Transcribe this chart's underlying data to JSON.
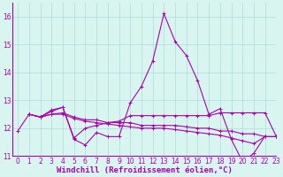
{
  "x": [
    0,
    1,
    2,
    3,
    4,
    5,
    6,
    7,
    8,
    9,
    10,
    11,
    12,
    13,
    14,
    15,
    16,
    17,
    18,
    19,
    20,
    21,
    22,
    23
  ],
  "line1": [
    11.9,
    12.5,
    12.4,
    12.65,
    12.75,
    11.6,
    11.4,
    11.85,
    11.7,
    11.7,
    12.9,
    13.5,
    14.4,
    16.1,
    15.1,
    14.6,
    13.7,
    12.5,
    12.7,
    11.6,
    10.8,
    11.1,
    11.72,
    null
  ],
  "line2": [
    null,
    12.5,
    12.4,
    12.6,
    12.75,
    11.65,
    12.0,
    12.1,
    12.2,
    12.25,
    12.45,
    12.45,
    12.45,
    12.45,
    12.45,
    12.45,
    12.45,
    12.45,
    12.55,
    12.55,
    12.55,
    12.55,
    12.55,
    11.7
  ],
  "line3": [
    null,
    12.5,
    12.4,
    12.5,
    12.55,
    12.4,
    12.3,
    12.3,
    12.2,
    12.2,
    12.2,
    12.1,
    12.1,
    12.1,
    12.1,
    12.05,
    12.0,
    12.0,
    11.9,
    11.9,
    11.8,
    11.8,
    11.7,
    11.7
  ],
  "line4": [
    null,
    12.5,
    12.4,
    12.5,
    12.5,
    12.35,
    12.25,
    12.2,
    12.15,
    12.1,
    12.05,
    12.0,
    12.0,
    12.0,
    11.95,
    11.9,
    11.85,
    11.8,
    11.75,
    11.65,
    11.55,
    11.45,
    11.7,
    11.7
  ],
  "line_color": "#aa00aa",
  "bg_color": "#d8f5f0",
  "grid_color": "#aadddd",
  "axis_color": "#aa00aa",
  "xlabel": "Windchill (Refroidissement éolien,°C)",
  "xlim": [
    -0.5,
    23
  ],
  "ylim": [
    11,
    16.5
  ],
  "yticks": [
    11,
    12,
    13,
    14,
    15,
    16
  ],
  "xticks": [
    0,
    1,
    2,
    3,
    4,
    5,
    6,
    7,
    8,
    9,
    10,
    11,
    12,
    13,
    14,
    15,
    16,
    17,
    18,
    19,
    20,
    21,
    22,
    23
  ],
  "markersize": 3,
  "linewidth": 0.8,
  "xlabel_fontsize": 6.5,
  "tick_fontsize": 5.5
}
